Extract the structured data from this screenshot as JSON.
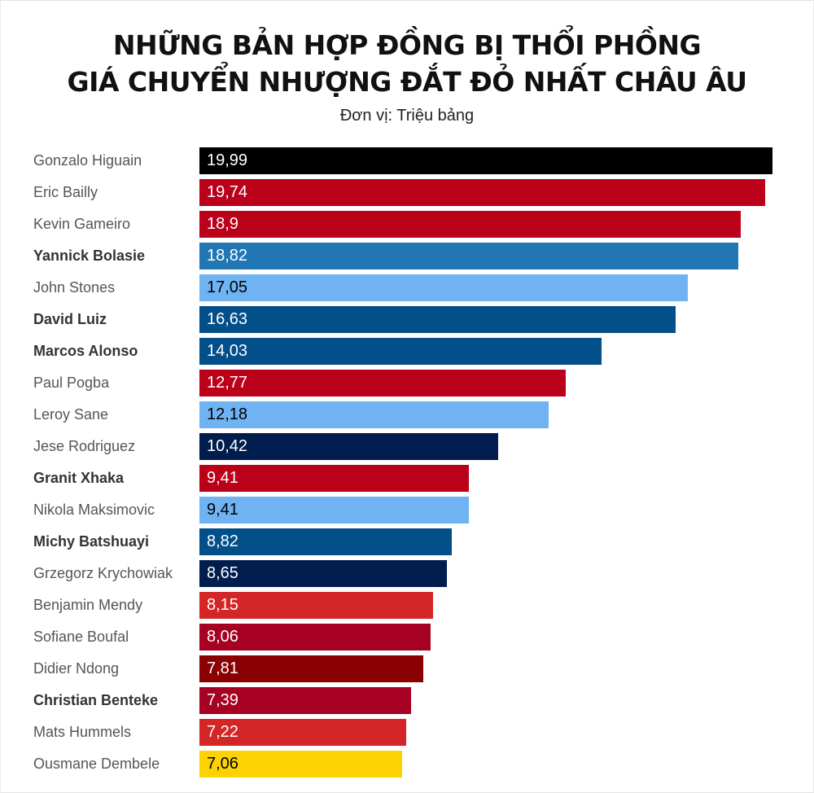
{
  "header": {
    "title_line1": "NHỮNG BẢN HỢP ĐỒNG BỊ THỔI PHỒNG",
    "title_line2": "GIÁ CHUYỂN NHƯỢNG ĐẮT ĐỎ NHẤT CHÂU ÂU",
    "subtitle": "Đơn vị: Triệu bảng"
  },
  "chart_data": {
    "type": "bar",
    "orientation": "horizontal",
    "title": "NHỮNG BẢN HỢP ĐỒNG BỊ THỔI PHỒNG GIÁ CHUYỂN NHƯỢNG ĐẮT ĐỎ NHẤT CHÂU ÂU",
    "subtitle": "Đơn vị: Triệu bảng",
    "xlabel": "",
    "ylabel": "",
    "xlim": [
      0,
      20
    ],
    "grid": false,
    "legend": null,
    "categories": [
      "Gonzalo Higuain",
      "Eric Bailly",
      "Kevin Gameiro",
      "Yannick Bolasie",
      "John Stones",
      "David Luiz",
      "Marcos Alonso",
      "Paul Pogba",
      "Leroy Sane",
      "Jese Rodriguez",
      "Granit Xhaka",
      "Nikola Maksimovic",
      "Michy Batshuayi",
      "Grzegorz Krychowiak",
      "Benjamin Mendy",
      "Sofiane Boufal",
      "Didier Ndong",
      "Christian Benteke",
      "Mats Hummels",
      "Ousmane Dembele"
    ],
    "values": [
      19.99,
      19.74,
      18.9,
      18.82,
      17.05,
      16.63,
      14.03,
      12.77,
      12.18,
      10.42,
      9.41,
      9.41,
      8.82,
      8.65,
      8.15,
      8.06,
      7.81,
      7.39,
      7.22,
      7.06
    ],
    "value_labels": [
      "19,99",
      "19,74",
      "18,9",
      "18,82",
      "17,05",
      "16,63",
      "14,03",
      "12,77",
      "12,18",
      "10,42",
      "9,41",
      "9,41",
      "8,82",
      "8,65",
      "8,15",
      "8,06",
      "7,81",
      "7,39",
      "7,22",
      "7,06"
    ],
    "bar_colors": [
      "#000000",
      "#bb0019",
      "#bb0019",
      "#2077b4",
      "#6fb3f3",
      "#034f8a",
      "#034f8a",
      "#bb0019",
      "#6fb3f3",
      "#001d4e",
      "#bb0019",
      "#6fb3f3",
      "#034f8a",
      "#001d4e",
      "#d42626",
      "#a60023",
      "#8b0000",
      "#a60023",
      "#d42626",
      "#fdd202"
    ],
    "label_bold": [
      false,
      false,
      false,
      true,
      false,
      true,
      true,
      false,
      false,
      false,
      true,
      false,
      true,
      false,
      false,
      false,
      false,
      true,
      false,
      false
    ],
    "value_text_dark": [
      false,
      false,
      false,
      false,
      true,
      false,
      false,
      false,
      true,
      false,
      false,
      true,
      false,
      false,
      false,
      false,
      false,
      false,
      false,
      true
    ]
  }
}
